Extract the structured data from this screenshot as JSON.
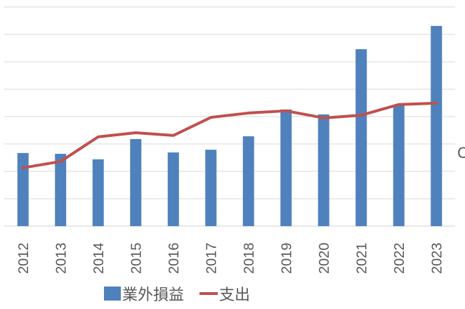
{
  "chart_data": {
    "type": "bar",
    "title": "",
    "xlabel": "",
    "ylabel": "",
    "categories": [
      "2012",
      "2013",
      "2014",
      "2015",
      "2016",
      "2017",
      "2018",
      "2019",
      "2020",
      "2021",
      "2022",
      "2023"
    ],
    "series": [
      {
        "name": "業外損益",
        "type": "bar",
        "color": "#4f81bd",
        "values": [
          2.67,
          2.64,
          2.44,
          3.18,
          2.69,
          2.79,
          3.28,
          4.26,
          4.08,
          6.46,
          4.41,
          7.31
        ]
      },
      {
        "name": "支出",
        "type": "line",
        "color": "#c0504d",
        "values": [
          2.13,
          2.36,
          3.26,
          3.41,
          3.31,
          3.97,
          4.13,
          4.21,
          3.95,
          4.05,
          4.44,
          4.49
        ]
      }
    ],
    "ylim": [
      0,
      8
    ],
    "y_units_note": "no y-axis tick labels visible; values in gridline units",
    "grid": true,
    "gridlines_count": 8,
    "legend_position": "bottom",
    "x_tick_rotation": -90
  },
  "legend": {
    "items": [
      {
        "label": "業外損益",
        "kind": "bar",
        "color": "#4f81bd"
      },
      {
        "label": "支出",
        "kind": "line",
        "color": "#c0504d"
      }
    ]
  },
  "edge_glyph": "C"
}
